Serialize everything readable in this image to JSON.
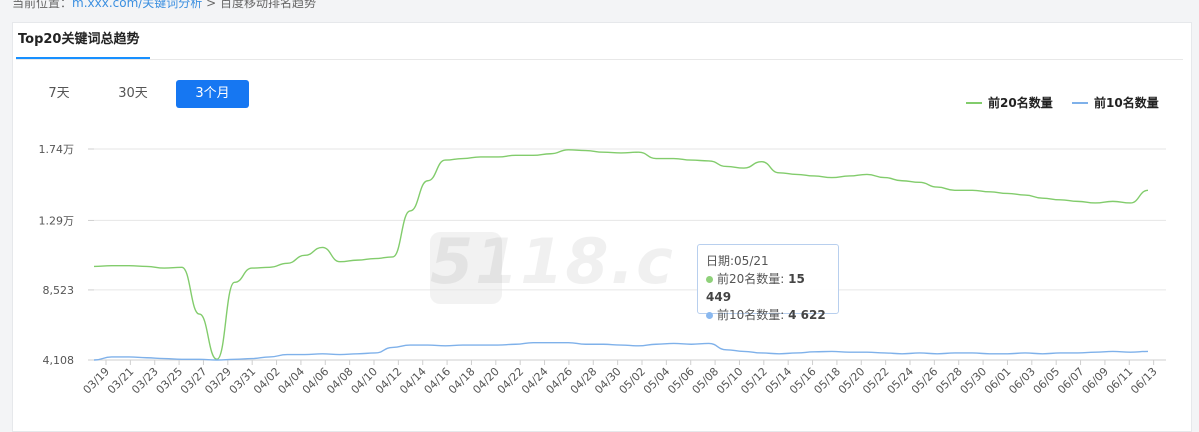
{
  "breadcrumb": {
    "prefix": "当前位置：",
    "link": "m.xxx.com/关键词分析",
    "current": " > 百度移动排名趋势"
  },
  "card": {
    "title": "Top20关键词总趋势"
  },
  "range_tabs": [
    {
      "label": "7天",
      "active": false
    },
    {
      "label": "30天",
      "active": false
    },
    {
      "label": "3个月",
      "active": true
    }
  ],
  "watermark": "5118.c",
  "tooltip": {
    "date_label": "日期:05/21",
    "rows": [
      {
        "label": "前20名数量",
        "value": "15 449",
        "color": "#8fd17a"
      },
      {
        "label": "前10名数量",
        "value": "4 622",
        "color": "#8ab8ef"
      }
    ]
  },
  "chart_data": {
    "type": "line",
    "title": "",
    "xlabel": "",
    "ylabel": "",
    "legend_position": "top-right",
    "grid": true,
    "ylim": [
      4108,
      17400
    ],
    "y_ticks": [
      {
        "value": 4108,
        "label": "4,108"
      },
      {
        "value": 8523,
        "label": "8,523"
      },
      {
        "value": 12900,
        "label": "1.29万"
      },
      {
        "value": 17400,
        "label": "1.74万"
      }
    ],
    "x_tick_labels": [
      "03/19",
      "03/21",
      "03/23",
      "03/25",
      "03/27",
      "03/29",
      "03/31",
      "04/02",
      "04/04",
      "04/06",
      "04/08",
      "04/10",
      "04/12",
      "04/14",
      "04/16",
      "04/18",
      "04/20",
      "04/22",
      "04/24",
      "04/26",
      "04/28",
      "04/30",
      "05/02",
      "05/04",
      "05/06",
      "05/08",
      "05/10",
      "05/12",
      "05/14",
      "05/16",
      "05/18",
      "05/20",
      "05/22",
      "05/24",
      "05/26",
      "05/28",
      "05/30",
      "06/01",
      "06/03",
      "06/05",
      "06/07",
      "06/09",
      "06/11",
      "06/13"
    ],
    "series": [
      {
        "name": "前20名数量",
        "color": "#82cc6c",
        "values": [
          10000,
          10050,
          10050,
          10000,
          9900,
          9950,
          7000,
          4150,
          9000,
          9900,
          9950,
          10200,
          10700,
          11200,
          10300,
          10400,
          10500,
          10600,
          13500,
          15400,
          16700,
          16800,
          16900,
          16900,
          17000,
          17000,
          17100,
          17350,
          17300,
          17200,
          17150,
          17200,
          16800,
          16800,
          16700,
          16650,
          16300,
          16200,
          16600,
          15900,
          15800,
          15700,
          15600,
          15700,
          15800,
          15600,
          15400,
          15300,
          15000,
          14800,
          14800,
          14700,
          14600,
          14500,
          14300,
          14200,
          14100,
          14000,
          14100,
          14000,
          14800
        ]
      },
      {
        "name": "前10名数量",
        "color": "#7fb1ea",
        "values": [
          4108,
          4300,
          4300,
          4250,
          4200,
          4150,
          4150,
          4108,
          4150,
          4200,
          4300,
          4450,
          4450,
          4500,
          4450,
          4500,
          4550,
          4900,
          5050,
          5050,
          5000,
          5050,
          5050,
          5050,
          5100,
          5200,
          5200,
          5200,
          5100,
          5100,
          5050,
          5000,
          5100,
          5150,
          5100,
          5150,
          4750,
          4650,
          4550,
          4500,
          4550,
          4622,
          4650,
          4600,
          4600,
          4550,
          4500,
          4550,
          4500,
          4550,
          4550,
          4500,
          4500,
          4550,
          4500,
          4550,
          4550,
          4600,
          4650,
          4600,
          4650
        ]
      }
    ]
  }
}
